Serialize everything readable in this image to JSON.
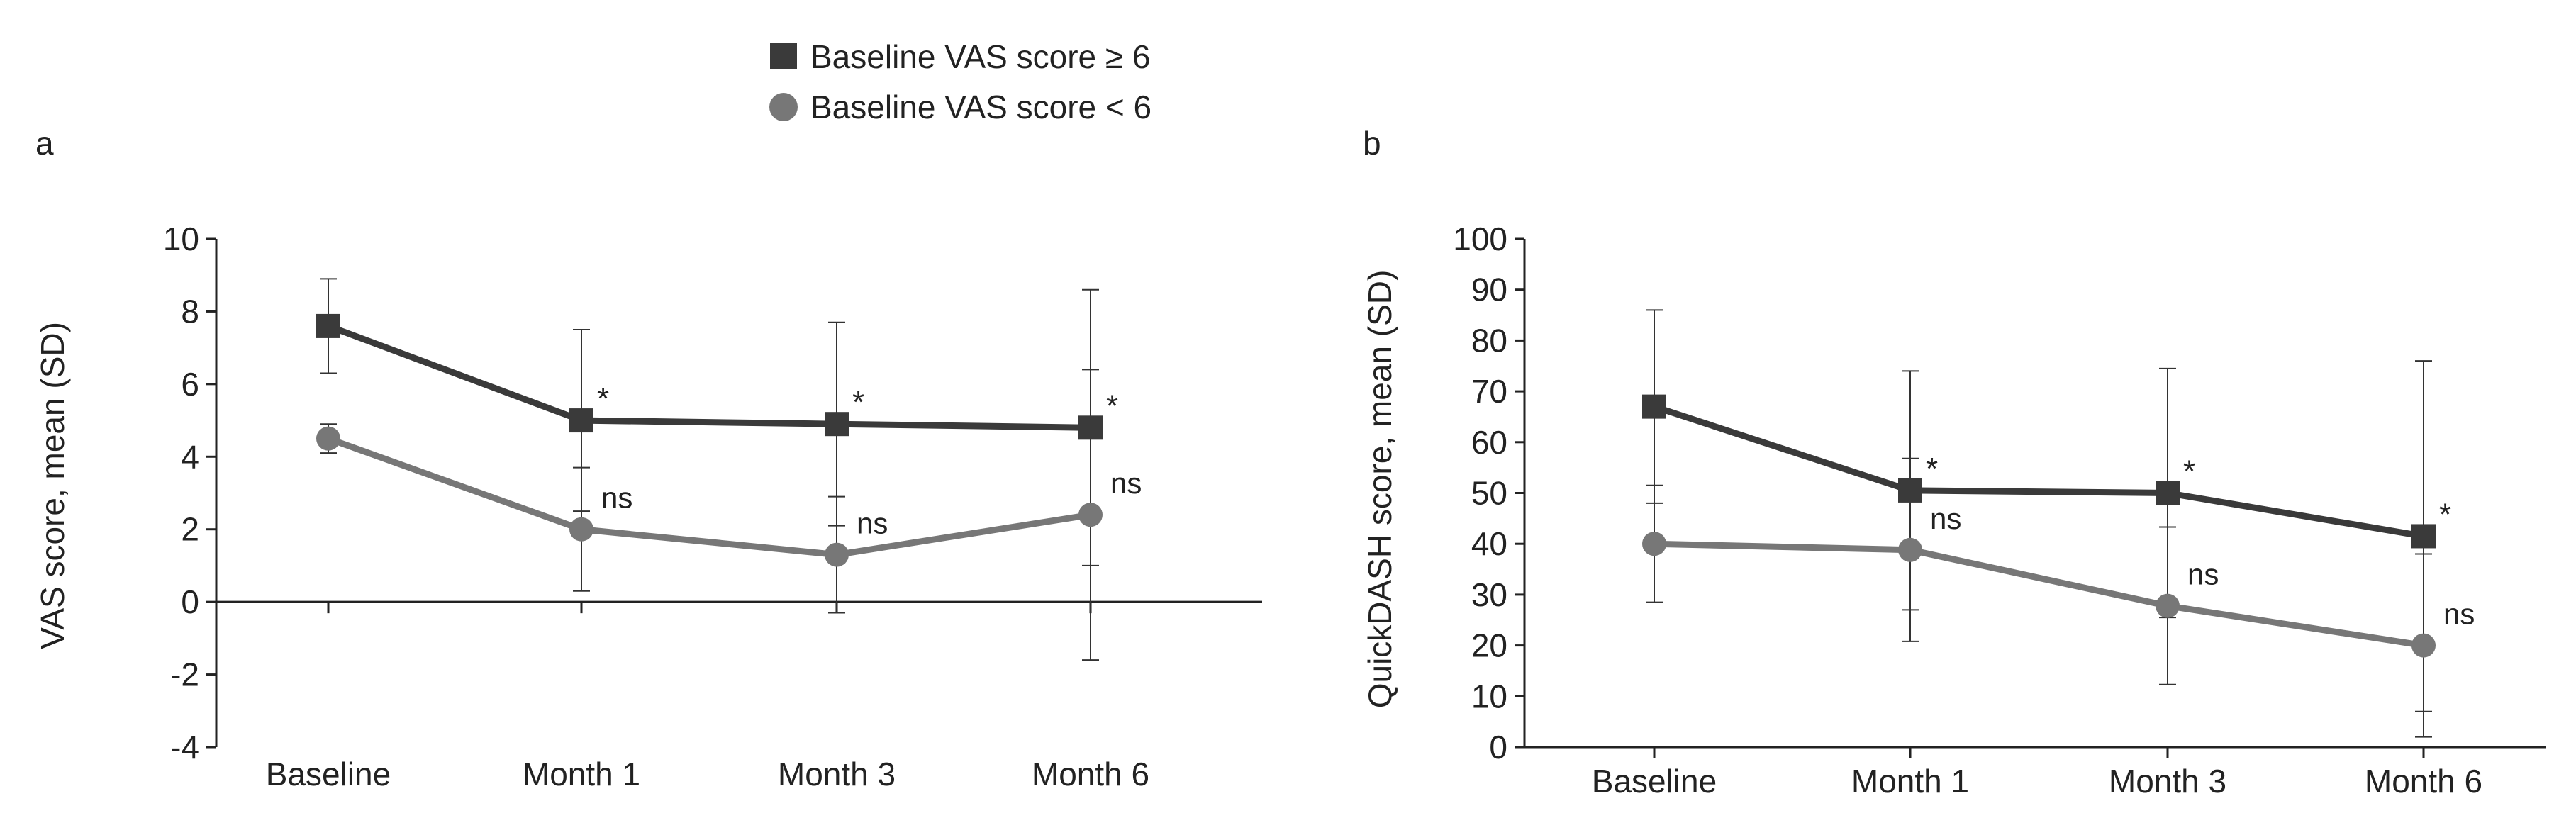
{
  "legend": {
    "high": {
      "label": "Baseline VAS score ≥ 6",
      "color": "#3a3a3a",
      "marker": "square"
    },
    "low": {
      "label": "Baseline VAS score < 6",
      "color": "#777777",
      "marker": "circle"
    }
  },
  "chart_data": [
    {
      "type": "line",
      "panel": "a",
      "title": "",
      "xlabel": "",
      "ylabel": "VAS score, mean (SD)",
      "categories": [
        "Baseline",
        "Month 1",
        "Month 3",
        "Month 6"
      ],
      "ylim": [
        -4,
        10
      ],
      "yticks": [
        -4,
        -2,
        0,
        2,
        4,
        6,
        8,
        10
      ],
      "series": [
        {
          "key": "high",
          "name": "Baseline VAS score ≥ 6",
          "values": [
            7.6,
            5.0,
            4.9,
            4.8
          ],
          "sd": [
            1.3,
            2.5,
            2.8,
            3.8
          ],
          "annotations": [
            "",
            "*",
            "*",
            "*"
          ]
        },
        {
          "key": "low",
          "name": "Baseline VAS score < 6",
          "values": [
            4.5,
            2.0,
            1.3,
            2.4
          ],
          "sd": [
            0.4,
            1.7,
            1.6,
            4.0
          ],
          "annotations": [
            "",
            "ns",
            "ns",
            "ns"
          ]
        }
      ]
    },
    {
      "type": "line",
      "panel": "b",
      "title": "",
      "xlabel": "",
      "ylabel": "QuickDASH score, mean (SD)",
      "categories": [
        "Baseline",
        "Month 1",
        "Month 3",
        "Month 6"
      ],
      "ylim": [
        0,
        100
      ],
      "yticks": [
        0,
        10,
        20,
        30,
        40,
        50,
        60,
        70,
        80,
        90,
        100
      ],
      "series": [
        {
          "key": "high",
          "name": "Baseline VAS score ≥ 6",
          "values": [
            67,
            50.5,
            50,
            41.5
          ],
          "sd": [
            19,
            23.5,
            24.5,
            34.5
          ],
          "annotations": [
            "",
            "*",
            "*",
            "*"
          ]
        },
        {
          "key": "low",
          "name": "Baseline VAS score < 6",
          "values": [
            40,
            38.8,
            27.8,
            20
          ],
          "sd": [
            11.5,
            18,
            15.5,
            18
          ],
          "annotations": [
            "",
            "ns",
            "ns",
            "ns"
          ]
        }
      ]
    }
  ]
}
